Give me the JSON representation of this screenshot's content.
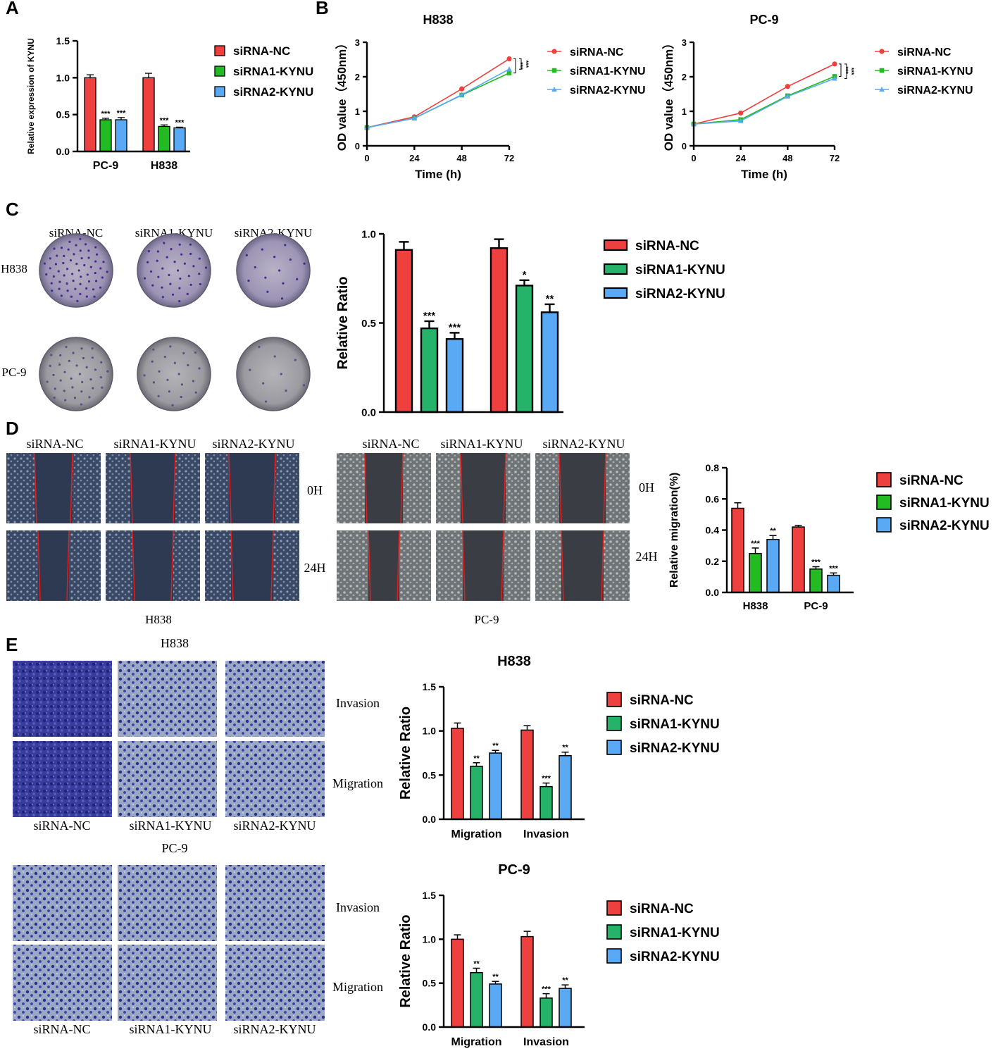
{
  "colors": {
    "nc": "#ef4040",
    "k1": "#22bb22",
    "k2": "#5aa9f5",
    "k1_alt": "#25b36a",
    "scratch": "#e81b1b"
  },
  "panels": {
    "A": "A",
    "B": "B",
    "C": "C",
    "D": "D",
    "E": "E"
  },
  "legend_labels": [
    "siRNA-NC",
    "siRNA1-KYNU",
    "siRNA2-KYNU"
  ],
  "images": {
    "c_cols": [
      "siRNA-NC",
      "siRNA1-KYNU",
      "siRNA2-KYNU"
    ],
    "c_rows": [
      "H838",
      "PC-9"
    ],
    "d_cols": [
      "siRNA-NC",
      "siRNA1-KYNU",
      "siRNA2-KYNU"
    ],
    "d_times": [
      "0H",
      "24H"
    ],
    "d_groups": [
      "H838",
      "PC-9"
    ],
    "e_titles": [
      "H838",
      "PC-9"
    ],
    "e_rows": [
      "Invasion",
      "Migration"
    ],
    "e_cols": [
      "siRNA-NC",
      "siRNA1-KYNU",
      "siRNA2-KYNU"
    ]
  },
  "chart_data": [
    {
      "id": "A",
      "type": "bar",
      "title": "",
      "xlabel": "",
      "ylabel": "Relative expression of KYNU",
      "categories": [
        "PC-9",
        "H838"
      ],
      "ylim": [
        0,
        1.5
      ],
      "yticks": [
        0.0,
        0.5,
        1.0,
        1.5
      ],
      "decimals": 1,
      "series": [
        {
          "name": "siRNA-NC",
          "values": [
            1.0,
            1.0
          ],
          "errors": [
            0.04,
            0.06
          ],
          "sig": [
            "",
            ""
          ]
        },
        {
          "name": "siRNA1-KYNU",
          "values": [
            0.43,
            0.34
          ],
          "errors": [
            0.02,
            0.02
          ],
          "sig": [
            "***",
            "***"
          ]
        },
        {
          "name": "siRNA2-KYNU",
          "values": [
            0.43,
            0.32
          ],
          "errors": [
            0.03,
            0.01
          ],
          "sig": [
            "***",
            "***"
          ]
        }
      ]
    },
    {
      "id": "B1",
      "type": "line",
      "title": "H838",
      "xlabel": "Time (h)",
      "ylabel": "OD value（450nm）",
      "x": [
        0,
        24,
        48,
        72
      ],
      "xlim": [
        0,
        72
      ],
      "ylim": [
        0,
        3
      ],
      "yticks": [
        0,
        1,
        2,
        3
      ],
      "brackets": [
        "***",
        "***"
      ],
      "series": [
        {
          "name": "siRNA-NC",
          "values": [
            0.53,
            0.84,
            1.65,
            2.52
          ]
        },
        {
          "name": "siRNA1-KYNU",
          "values": [
            0.53,
            0.8,
            1.47,
            2.11
          ]
        },
        {
          "name": "siRNA2-KYNU",
          "values": [
            0.53,
            0.8,
            1.48,
            2.22
          ]
        }
      ]
    },
    {
      "id": "B2",
      "type": "line",
      "title": "PC-9",
      "xlabel": "Time (h)",
      "ylabel": "OD value（450nm）",
      "x": [
        0,
        24,
        48,
        72
      ],
      "xlim": [
        0,
        72
      ],
      "ylim": [
        0,
        3
      ],
      "yticks": [
        0,
        1,
        2,
        3
      ],
      "brackets": [
        "***",
        "***"
      ],
      "series": [
        {
          "name": "siRNA-NC",
          "values": [
            0.63,
            0.95,
            1.72,
            2.37
          ]
        },
        {
          "name": "siRNA1-KYNU",
          "values": [
            0.63,
            0.76,
            1.45,
            2.01
          ]
        },
        {
          "name": "siRNA2-KYNU",
          "values": [
            0.63,
            0.72,
            1.43,
            1.95
          ]
        }
      ]
    },
    {
      "id": "C",
      "type": "bar",
      "title": "",
      "xlabel": "",
      "ylabel": "Relative Ratio",
      "categories": [
        "H838",
        "PC-9"
      ],
      "ylim": [
        0,
        1.0
      ],
      "yticks": [
        0.0,
        0.5,
        1.0
      ],
      "decimals": 1,
      "series": [
        {
          "name": "siRNA-NC",
          "values": [
            0.91,
            0.92
          ],
          "errors": [
            0.045,
            0.05
          ],
          "sig": [
            "",
            ""
          ]
        },
        {
          "name": "siRNA1-KYNU",
          "values": [
            0.47,
            0.71
          ],
          "errors": [
            0.04,
            0.03
          ],
          "sig": [
            "***",
            "*"
          ]
        },
        {
          "name": "siRNA2-KYNU",
          "values": [
            0.41,
            0.56
          ],
          "errors": [
            0.035,
            0.045
          ],
          "sig": [
            "***",
            "**"
          ]
        }
      ]
    },
    {
      "id": "D",
      "type": "bar",
      "title": "",
      "xlabel": "",
      "ylabel": "Relative migration(%)",
      "categories": [
        "H838",
        "PC-9"
      ],
      "ylim": [
        0,
        0.8
      ],
      "yticks": [
        0.0,
        0.2,
        0.4,
        0.6,
        0.8
      ],
      "decimals": 1,
      "series": [
        {
          "name": "siRNA-NC",
          "values": [
            0.54,
            0.42
          ],
          "errors": [
            0.035,
            0.01
          ],
          "sig": [
            "",
            ""
          ]
        },
        {
          "name": "siRNA1-KYNU",
          "values": [
            0.25,
            0.15
          ],
          "errors": [
            0.035,
            0.015
          ],
          "sig": [
            "***",
            "***"
          ]
        },
        {
          "name": "siRNA2-KYNU",
          "values": [
            0.34,
            0.11
          ],
          "errors": [
            0.025,
            0.015
          ],
          "sig": [
            "**",
            "***"
          ]
        }
      ]
    },
    {
      "id": "E1",
      "type": "bar",
      "title": "H838",
      "xlabel": "",
      "ylabel": "Relative Ratio",
      "categories": [
        "Migration",
        "Invasion"
      ],
      "ylim": [
        0,
        1.5
      ],
      "yticks": [
        0.0,
        0.5,
        1.0,
        1.5
      ],
      "decimals": 1,
      "series": [
        {
          "name": "siRNA-NC",
          "values": [
            1.03,
            1.01
          ],
          "errors": [
            0.06,
            0.05
          ],
          "sig": [
            "",
            ""
          ]
        },
        {
          "name": "siRNA1-KYNU",
          "values": [
            0.6,
            0.37
          ],
          "errors": [
            0.04,
            0.04
          ],
          "sig": [
            "**",
            "***"
          ]
        },
        {
          "name": "siRNA2-KYNU",
          "values": [
            0.75,
            0.72
          ],
          "errors": [
            0.03,
            0.04
          ],
          "sig": [
            "**",
            "**"
          ]
        }
      ]
    },
    {
      "id": "E2",
      "type": "bar",
      "title": "PC-9",
      "xlabel": "",
      "ylabel": "Relative Ratio",
      "categories": [
        "Migration",
        "Invasion"
      ],
      "ylim": [
        0,
        1.5
      ],
      "yticks": [
        0.0,
        0.5,
        1.0,
        1.5
      ],
      "decimals": 1,
      "series": [
        {
          "name": "siRNA-NC",
          "values": [
            1.0,
            1.03
          ],
          "errors": [
            0.05,
            0.06
          ],
          "sig": [
            "",
            ""
          ]
        },
        {
          "name": "siRNA1-KYNU",
          "values": [
            0.62,
            0.33
          ],
          "errors": [
            0.05,
            0.05
          ],
          "sig": [
            "**",
            "***"
          ]
        },
        {
          "name": "siRNA2-KYNU",
          "values": [
            0.49,
            0.44
          ],
          "errors": [
            0.03,
            0.04
          ],
          "sig": [
            "**",
            "**"
          ]
        }
      ]
    }
  ]
}
